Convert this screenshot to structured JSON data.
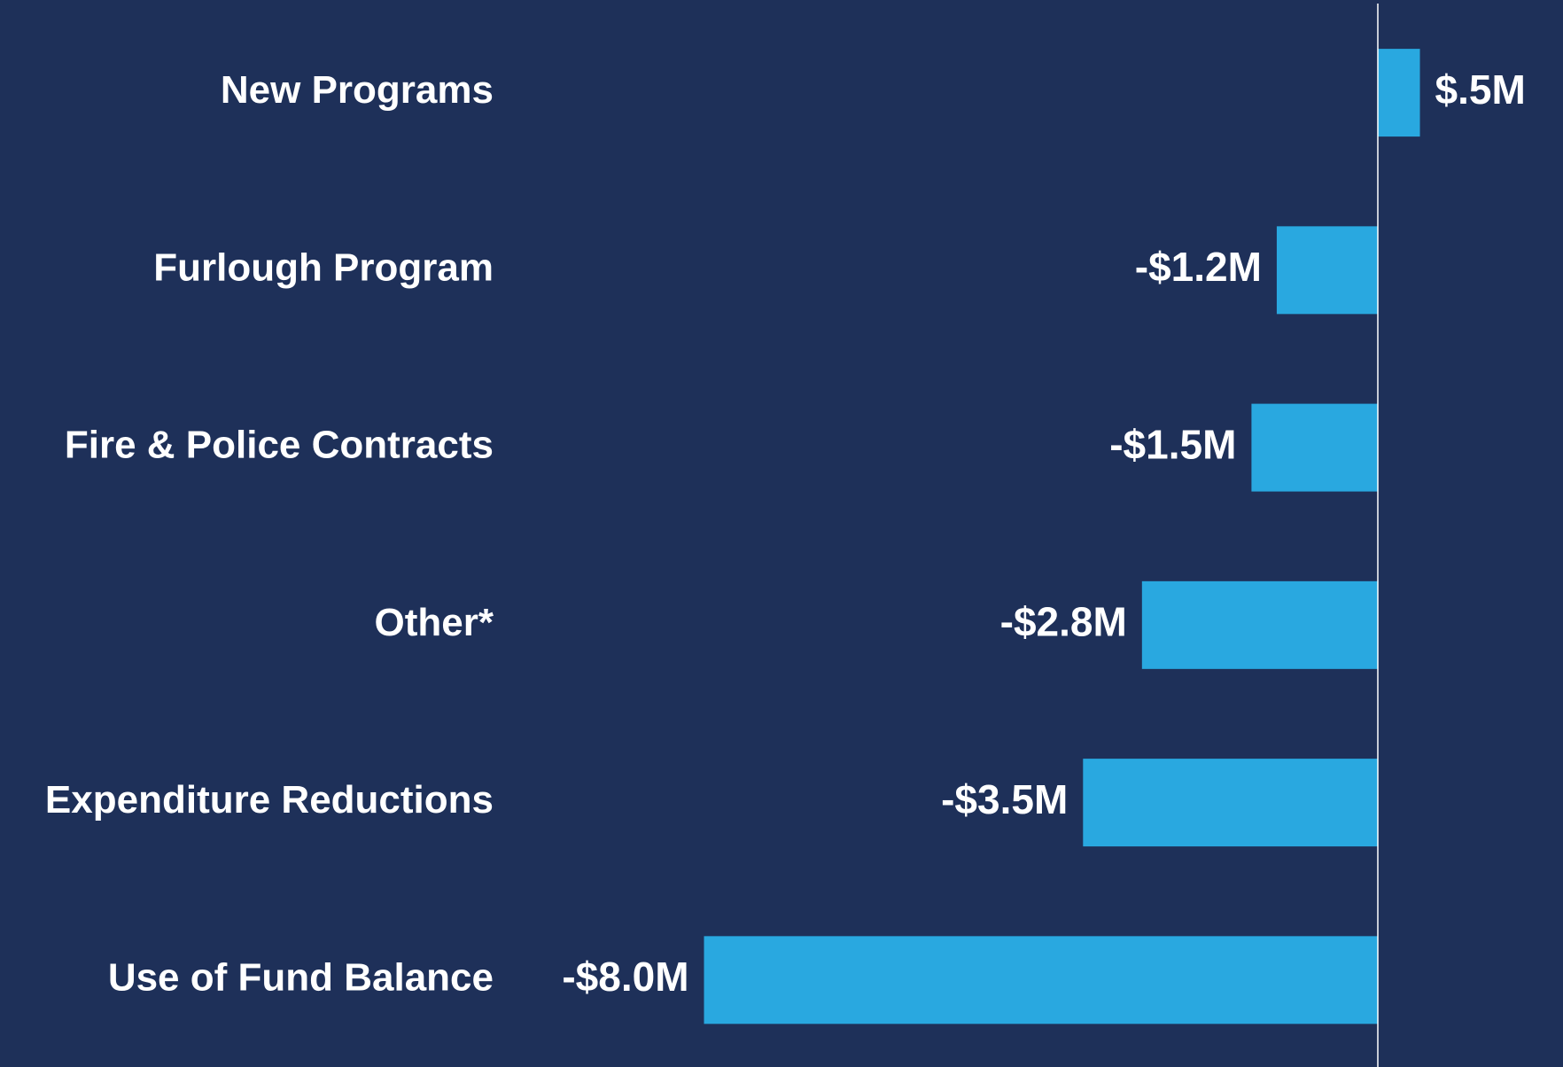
{
  "chart_data": {
    "type": "bar",
    "orientation": "horizontal",
    "categories": [
      "New Programs",
      "Furlough Program",
      "Fire & Police Contracts",
      "Other*",
      "Expenditure Reductions",
      "Use of Fund Balance"
    ],
    "values": [
      0.5,
      -1.2,
      -1.5,
      -2.8,
      -3.5,
      -8.0
    ],
    "value_labels": [
      "$.5M",
      "-$1.2M",
      "-$1.5M",
      "-$2.8M",
      "-$3.5M",
      "-$8.0M"
    ],
    "color": "#29a8e0"
  }
}
